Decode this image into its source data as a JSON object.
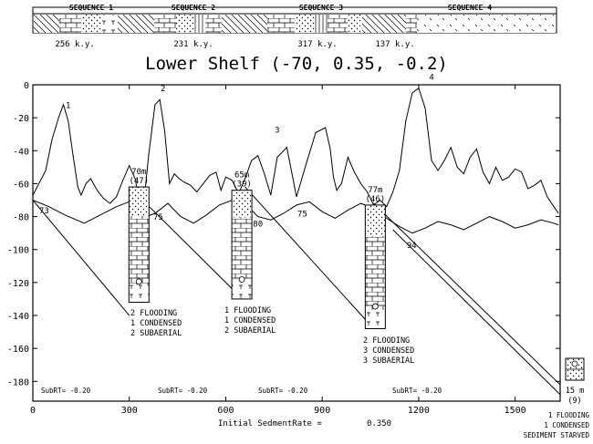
{
  "chart_data": {
    "type": "line",
    "title": "Lower Shelf (-70, 0.35, -0.2)",
    "xlabel": "Initial SedmentRate =",
    "xlabel_value": "0.350",
    "x_ticks": [
      0,
      300,
      600,
      900,
      1200,
      1500
    ],
    "y_ticks": [
      0,
      -20,
      -40,
      -60,
      -80,
      -100,
      -120,
      -140,
      -160,
      -180
    ],
    "xlim": [
      0,
      1640
    ],
    "ylim": [
      -192,
      0
    ],
    "grid": false,
    "sequence_bar": {
      "labels": [
        "SEQUENCE 1",
        "SEQUENCE 2",
        "SEQUENCE 3",
        "SEQUENCE 4"
      ],
      "durations": [
        "256 k.y.",
        "231 k.y.",
        "317 k.y.",
        "137 k.y."
      ]
    },
    "series": [
      {
        "x": [
          0,
          40,
          60,
          80,
          95,
          110,
          125,
          140,
          150,
          165,
          180,
          200,
          220,
          240,
          260,
          280,
          300,
          320,
          330,
          345,
          360,
          380,
          395,
          410,
          425,
          440,
          455,
          470,
          490,
          510,
          530,
          550,
          570,
          585,
          600,
          620,
          640,
          660,
          680,
          700,
          720,
          740,
          760,
          790,
          820,
          850,
          880,
          910,
          925,
          935,
          945,
          960,
          980,
          1000,
          1020,
          1040,
          1060,
          1080,
          1100,
          1120,
          1140,
          1160,
          1180,
          1200,
          1220,
          1240,
          1260,
          1280,
          1300,
          1320,
          1340,
          1360,
          1380,
          1400,
          1420,
          1440,
          1460,
          1480,
          1500,
          1520,
          1540,
          1560,
          1580,
          1600,
          1620,
          1635
        ],
        "y": [
          -67,
          -52,
          -33,
          -20,
          -12,
          -22,
          -43,
          -62,
          -67,
          -60,
          -57,
          -64,
          -69,
          -72,
          -68,
          -58,
          -49,
          -58,
          -76,
          -72,
          -43,
          -12,
          -9,
          -28,
          -60,
          -54,
          -57,
          -59,
          -61,
          -65,
          -60,
          -55,
          -53,
          -64,
          -56,
          -58,
          -66,
          -57,
          -46,
          -43,
          -54,
          -67,
          -44,
          -38,
          -68,
          -48,
          -29,
          -26,
          -39,
          -56,
          -64,
          -60,
          -44,
          -53,
          -60,
          -65,
          -73,
          -70,
          -74,
          -65,
          -52,
          -22,
          -5,
          -2,
          -14,
          -46,
          -52,
          -46,
          -38,
          -50,
          -54,
          -44,
          -39,
          -53,
          -60,
          -50,
          -58,
          -56,
          -51,
          -53,
          -63,
          -61,
          -58,
          -68,
          -74,
          -78
        ]
      },
      {
        "x": [
          0,
          50,
          100,
          160,
          200,
          260,
          300,
          340,
          380,
          420,
          460,
          500,
          540,
          580,
          620,
          660,
          700,
          740,
          780,
          820,
          860,
          900,
          940,
          980,
          1020,
          1060,
          1100,
          1140,
          1180,
          1220,
          1260,
          1300,
          1340,
          1380,
          1420,
          1460,
          1500,
          1540,
          1580,
          1620,
          1635
        ],
        "y": [
          -70,
          -74,
          -79,
          -84,
          -80,
          -74,
          -71,
          -81,
          -78,
          -72,
          -80,
          -84,
          -79,
          -73,
          -70,
          -72,
          -80,
          -82,
          -78,
          -73,
          -71,
          -77,
          -81,
          -76,
          -72,
          -75,
          -81,
          -86,
          -90,
          -87,
          -83,
          -85,
          -88,
          -84,
          -80,
          -83,
          -87,
          -85,
          -82,
          -84,
          -85
        ]
      }
    ],
    "subsidence_lines": [
      {
        "x": [
          0,
          300
        ],
        "y": [
          -70,
          -140
        ]
      },
      {
        "x": [
          300,
          652
        ],
        "y": [
          -62,
          -130
        ]
      },
      {
        "x": [
          660,
          1060
        ],
        "y": [
          -62,
          -148
        ]
      },
      {
        "x": [
          1060,
          1640
        ],
        "y": [
          -72,
          -182
        ]
      },
      {
        "x": [
          1120,
          1640
        ],
        "y": [
          -88,
          -188
        ]
      }
    ],
    "point_labels": [
      {
        "text": "1",
        "x": 110,
        "y": -14
      },
      {
        "text": "2",
        "x": 405,
        "y": -4
      },
      {
        "text": "3",
        "x": 760,
        "y": -29
      },
      {
        "text": "4",
        "x": 1240,
        "y": 3
      },
      {
        "text": "73",
        "x": 35,
        "y": -78
      },
      {
        "text": "75",
        "x": 390,
        "y": -82
      },
      {
        "text": "80",
        "x": 700,
        "y": -86
      },
      {
        "text": "75",
        "x": 838,
        "y": -80
      },
      {
        "text": "94",
        "x": 1178,
        "y": -99
      }
    ],
    "columns": [
      {
        "label": "70m",
        "sublabel": "(47)",
        "x": 330,
        "top": -62,
        "bottom": -132
      },
      {
        "label": "65m",
        "sublabel": "(39)",
        "x": 650,
        "top": -64,
        "bottom": -130
      },
      {
        "label": "77m",
        "sublabel": "(46)",
        "x": 1065,
        "top": -73,
        "bottom": -148
      }
    ],
    "column_notes": [
      [
        "2 FLOODING",
        "1 CONDENSED",
        "2 SUBAERIAL"
      ],
      [
        "1 FLOODING",
        "1 CONDENSED",
        "2 SUBAERIAL"
      ],
      [
        "2 FLOODING",
        "3 CONDENSED",
        "3 SUBAERIAL"
      ]
    ],
    "subrt_labels": [
      "SubRT= -0.20",
      "SubRT= -0.20",
      "SubRT= -0.20",
      "SubRT= -0.20"
    ],
    "side_column": {
      "label": "15 m",
      "sublabel": "(9)"
    },
    "side_notes": [
      "1 FLOODING",
      "1 CONDENSED",
      "SEDIMENT STARVED"
    ]
  }
}
